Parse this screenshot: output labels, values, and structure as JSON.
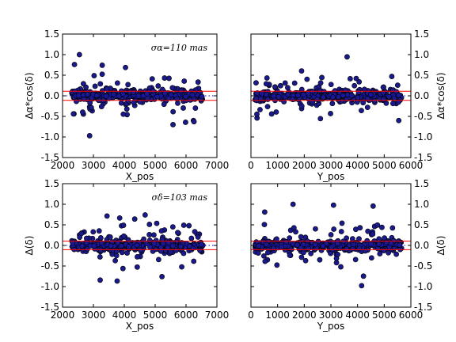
{
  "colors": {
    "point_fill": "#1a1a8c",
    "point_stroke": "#000000",
    "sigma_line": "#ff0000",
    "zero_line": "#0000ff"
  },
  "chart_data": [
    {
      "type": "scatter",
      "panel": "top-left",
      "xlabel": "X_pos",
      "ylabel": "Δα*cos(δ)",
      "xlim": [
        2000,
        7000
      ],
      "ylim": [
        -1.5,
        1.5
      ],
      "xticks": [
        "2000",
        "3000",
        "4000",
        "5000",
        "6000",
        "7000"
      ],
      "yticks": [
        "-1.5",
        "-1.0",
        "-0.5",
        "0.0",
        "0.5",
        "1.0",
        "1.5"
      ],
      "ytick_side": "left",
      "annotation": "σα=110 mas",
      "sigma_lines": [
        0.11,
        -0.11
      ],
      "zero_line": 0.0,
      "x_range_of_points": [
        2300,
        6550
      ],
      "seed": 11
    },
    {
      "type": "scatter",
      "panel": "top-right",
      "xlabel": "Y_pos",
      "ylabel": "Δα*cos(δ)",
      "xlim": [
        0,
        6000
      ],
      "ylim": [
        -1.5,
        1.5
      ],
      "xticks": [
        "0",
        "1000",
        "2000",
        "3000",
        "4000",
        "5000",
        "6000"
      ],
      "yticks": [
        "-1.5",
        "-1.0",
        "-0.5",
        "0.0",
        "0.5",
        "1.0",
        "1.5"
      ],
      "ytick_side": "right",
      "annotation": "",
      "sigma_lines": [
        0.11,
        -0.11
      ],
      "zero_line": 0.0,
      "x_range_of_points": [
        150,
        5650
      ],
      "seed": 23
    },
    {
      "type": "scatter",
      "panel": "bottom-left",
      "xlabel": "X_pos",
      "ylabel": "Δ(δ)",
      "xlim": [
        2000,
        7000
      ],
      "ylim": [
        -1.5,
        1.5
      ],
      "xticks": [
        "2000",
        "3000",
        "4000",
        "5000",
        "6000",
        "7000"
      ],
      "yticks": [
        "-1.5",
        "-1.0",
        "-0.5",
        "0.0",
        "0.5",
        "1.0",
        "1.5"
      ],
      "ytick_side": "left",
      "annotation": "σδ=103 mas",
      "sigma_lines": [
        0.103,
        -0.103
      ],
      "zero_line": 0.0,
      "x_range_of_points": [
        2300,
        6550
      ],
      "seed": 37
    },
    {
      "type": "scatter",
      "panel": "bottom-right",
      "xlabel": "Y_pos",
      "ylabel": "Δ(δ)",
      "xlim": [
        0,
        6000
      ],
      "ylim": [
        -1.5,
        1.5
      ],
      "xticks": [
        "0",
        "1000",
        "2000",
        "3000",
        "4000",
        "5000",
        "6000"
      ],
      "yticks": [
        "-1.5",
        "-1.0",
        "-0.5",
        "0.0",
        "0.5",
        "1.0",
        "1.5"
      ],
      "ytick_side": "right",
      "annotation": "",
      "sigma_lines": [
        0.103,
        -0.103
      ],
      "zero_line": 0.0,
      "x_range_of_points": [
        150,
        5650
      ],
      "seed": 53
    }
  ]
}
